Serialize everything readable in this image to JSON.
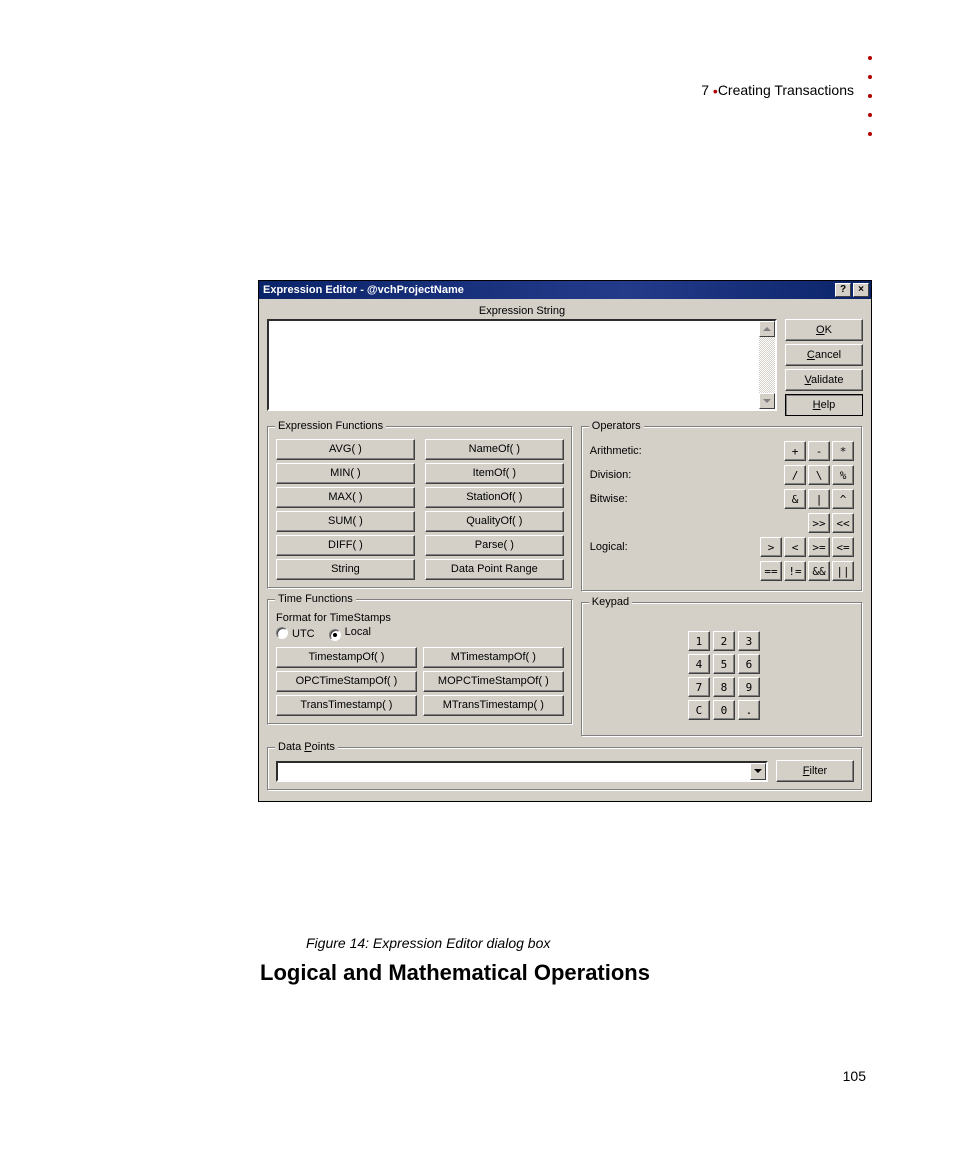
{
  "header": {
    "chapter_num": "7",
    "chapter_title": "Creating Transactions"
  },
  "page_number": "105",
  "caption": "Figure 14: Expression Editor dialog box",
  "section_heading": "Logical and Mathematical Operations",
  "colors": {
    "page_bg": "#ffffff",
    "dialog_bg": "#d4d0c8",
    "titlebar_start": "#0a246a",
    "titlebar_text": "#ffffff",
    "accent_red": "#b00000",
    "text": "#000000",
    "border_light": "#ffffff",
    "border_dark": "#404040",
    "border_mid": "#808080"
  },
  "dialog": {
    "title": "Expression Editor - @vchProjectName",
    "help_glyph": "?",
    "close_glyph": "×",
    "expr_label": "Expression String",
    "buttons": {
      "ok_pre": "",
      "ok_u": "O",
      "ok_post": "K",
      "cancel_pre": "",
      "cancel_u": "C",
      "cancel_post": "ancel",
      "validate_pre": "",
      "validate_u": "V",
      "validate_post": "alidate",
      "help_pre": "",
      "help_u": "H",
      "help_post": "elp"
    },
    "expr_functions": {
      "legend": "Expression Functions",
      "items": [
        "AVG( )",
        "NameOf( )",
        "MIN( )",
        "ItemOf( )",
        "MAX( )",
        "StationOf( )",
        "SUM( )",
        "QualityOf( )",
        "DIFF( )",
        "Parse( )",
        "String",
        "Data Point Range"
      ]
    },
    "operators": {
      "legend": "Operators",
      "rows": [
        {
          "label": "Arithmetic:",
          "ops": [
            "+",
            "-",
            "*"
          ]
        },
        {
          "label": "Division:",
          "ops": [
            "/",
            "\\",
            "%"
          ]
        },
        {
          "label": "Bitwise:",
          "ops": [
            "&",
            "|",
            "^"
          ]
        },
        {
          "label": "",
          "ops": [
            ">>",
            "<<"
          ]
        },
        {
          "label": "Logical:",
          "ops": [
            ">",
            "<",
            ">=",
            "<="
          ]
        },
        {
          "label": "",
          "ops": [
            "==",
            "!=",
            "&&",
            "||"
          ]
        }
      ]
    },
    "time_functions": {
      "legend": "Time Functions",
      "format_label": "Format for TimeStamps",
      "utc_label": "UTC",
      "local_label": "Local",
      "selected": "local",
      "items": [
        "TimestampOf( )",
        "MTimestampOf( )",
        "OPCTimeStampOf( )",
        "MOPCTimeStampOf( )",
        "TransTimestamp( )",
        "MTransTimestamp( )"
      ]
    },
    "keypad": {
      "legend": "Keypad",
      "keys": [
        "1",
        "2",
        "3",
        "4",
        "5",
        "6",
        "7",
        "8",
        "9",
        "C",
        "0",
        "."
      ]
    },
    "data_points": {
      "legend_pre": "Data ",
      "legend_u": "P",
      "legend_post": "oints",
      "filter_pre": "",
      "filter_u": "F",
      "filter_post": "ilter"
    }
  }
}
